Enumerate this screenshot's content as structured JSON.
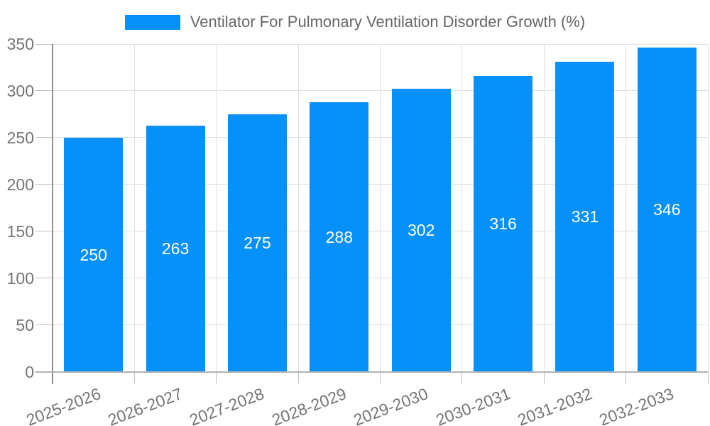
{
  "chart_data": {
    "type": "bar",
    "title": "Ventilator For Pulmonary Ventilation Disorder Growth (%)",
    "categories": [
      "2025-2026",
      "2026-2027",
      "2027-2028",
      "2028-2029",
      "2029-2030",
      "2030-2031",
      "2031-2032",
      "2032-2033"
    ],
    "values": [
      250,
      263,
      275,
      288,
      302,
      316,
      331,
      346
    ],
    "value_labels": [
      "250",
      "263",
      "275",
      "288",
      "302",
      "316",
      "331",
      "346"
    ],
    "xlabel": "",
    "ylabel": "",
    "ylim": [
      0,
      350
    ],
    "ytick_step": 50,
    "ytick_labels": [
      "0",
      "50",
      "100",
      "150",
      "200",
      "250",
      "300",
      "350"
    ],
    "grid": true,
    "legend_position": "top-center",
    "colors": {
      "bar": "#0590fa",
      "value_label": "#ffffff",
      "grid": "#e0e0e0",
      "axis_y": "#8f8f8f",
      "axis_x": "#b2b2b2",
      "tick": "#c0c0c0",
      "tick_text": "#757575",
      "title_text": "#666666",
      "background": "#ffffff"
    }
  }
}
